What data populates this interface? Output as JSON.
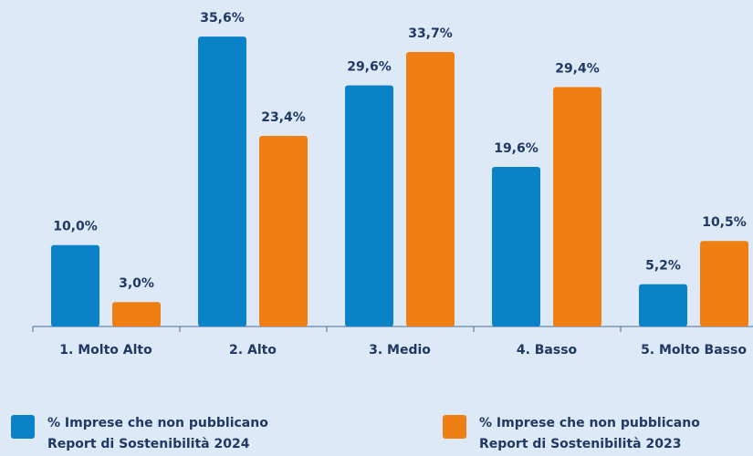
{
  "chart_data": {
    "type": "bar",
    "categories": [
      "1. Molto Alto",
      "2. Alto",
      "3. Medio",
      "4. Basso",
      "5. Molto Basso"
    ],
    "series": [
      {
        "name": "% Imprese che non pubblicano Report di Sostenibilità 2024",
        "color": "#0a82c8",
        "values": [
          10.0,
          35.6,
          29.6,
          19.6,
          5.2
        ],
        "value_labels": [
          "10,0%",
          "35,6%",
          "29,6%",
          "19,6%",
          "5,2%"
        ]
      },
      {
        "name": "% Imprese che non pubblicano Report di Sostenibilità 2023",
        "color": "#f07f13",
        "values": [
          3.0,
          23.4,
          33.7,
          29.4,
          10.5
        ],
        "value_labels": [
          "3,0%",
          "23,4%",
          "33,7%",
          "29,4%",
          "10,5%"
        ]
      }
    ]
  }
}
